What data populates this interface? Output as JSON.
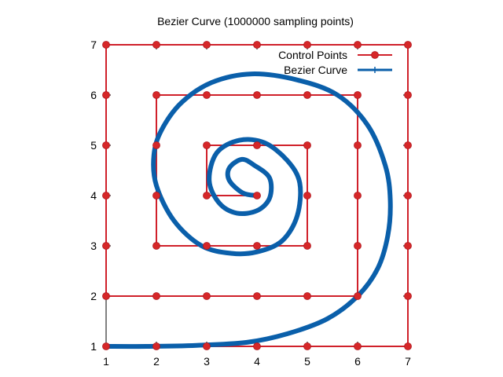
{
  "chart_data": {
    "type": "line",
    "title": "Bezier Curve (1000000 sampling points)",
    "xlabel": "",
    "ylabel": "",
    "xlim": [
      1,
      7
    ],
    "ylim": [
      1,
      7
    ],
    "xticks": [
      1,
      2,
      3,
      4,
      5,
      6,
      7
    ],
    "yticks": [
      1,
      2,
      3,
      4,
      5,
      6,
      7
    ],
    "grid": false,
    "legend_position": "top-right",
    "series": [
      {
        "name": "Control Points",
        "style": "lines+points",
        "color": "#d0202a",
        "marker_color": "#d62728",
        "points": [
          [
            4,
            4
          ],
          [
            3,
            4
          ],
          [
            3,
            5
          ],
          [
            4,
            5
          ],
          [
            5,
            5
          ],
          [
            5,
            4
          ],
          [
            5,
            3
          ],
          [
            4,
            3
          ],
          [
            3,
            3
          ],
          [
            2,
            3
          ],
          [
            2,
            4
          ],
          [
            2,
            5
          ],
          [
            2,
            6
          ],
          [
            3,
            6
          ],
          [
            4,
            6
          ],
          [
            5,
            6
          ],
          [
            6,
            6
          ],
          [
            6,
            5
          ],
          [
            6,
            4
          ],
          [
            6,
            3
          ],
          [
            6,
            2
          ],
          [
            5,
            2
          ],
          [
            4,
            2
          ],
          [
            3,
            2
          ],
          [
            2,
            2
          ],
          [
            1,
            2
          ],
          [
            1,
            3
          ],
          [
            1,
            4
          ],
          [
            1,
            5
          ],
          [
            1,
            6
          ],
          [
            1,
            7
          ],
          [
            2,
            7
          ],
          [
            3,
            7
          ],
          [
            4,
            7
          ],
          [
            5,
            7
          ],
          [
            6,
            7
          ],
          [
            7,
            7
          ],
          [
            7,
            6
          ],
          [
            7,
            5
          ],
          [
            7,
            4
          ],
          [
            7,
            3
          ],
          [
            7,
            2
          ],
          [
            7,
            1
          ],
          [
            6,
            1
          ],
          [
            5,
            1
          ],
          [
            4,
            1
          ],
          [
            3,
            1
          ],
          [
            2,
            1
          ],
          [
            1,
            1
          ]
        ]
      },
      {
        "name": "Bezier Curve",
        "style": "line",
        "color": "#0a5faa",
        "points": [
          [
            4,
            4.0
          ],
          [
            3.72,
            4.05
          ],
          [
            3.45,
            4.3
          ],
          [
            3.45,
            4.55
          ],
          [
            3.7,
            4.72
          ],
          [
            3.95,
            4.6
          ],
          [
            4.25,
            4.35
          ],
          [
            4.25,
            3.95
          ],
          [
            4.0,
            3.7
          ],
          [
            3.6,
            3.65
          ],
          [
            3.25,
            3.85
          ],
          [
            3.05,
            4.3
          ],
          [
            3.2,
            4.85
          ],
          [
            3.65,
            5.1
          ],
          [
            4.15,
            5.05
          ],
          [
            4.6,
            4.7
          ],
          [
            4.85,
            4.25
          ],
          [
            4.8,
            3.6
          ],
          [
            4.5,
            3.1
          ],
          [
            4.0,
            2.88
          ],
          [
            3.5,
            2.85
          ],
          [
            2.9,
            3.0
          ],
          [
            2.35,
            3.5
          ],
          [
            2.0,
            4.2
          ],
          [
            1.95,
            4.8
          ],
          [
            2.1,
            5.3
          ],
          [
            2.5,
            5.85
          ],
          [
            3.1,
            6.25
          ],
          [
            3.9,
            6.42
          ],
          [
            4.8,
            6.3
          ],
          [
            5.6,
            6.0
          ],
          [
            6.2,
            5.4
          ],
          [
            6.55,
            4.6
          ],
          [
            6.65,
            3.9
          ],
          [
            6.6,
            3.2
          ],
          [
            6.4,
            2.55
          ],
          [
            6.0,
            2.0
          ],
          [
            5.4,
            1.55
          ],
          [
            4.6,
            1.25
          ],
          [
            3.8,
            1.08
          ],
          [
            2.8,
            1.02
          ],
          [
            1.8,
            1.0
          ],
          [
            1.0,
            1.0
          ]
        ]
      }
    ]
  }
}
